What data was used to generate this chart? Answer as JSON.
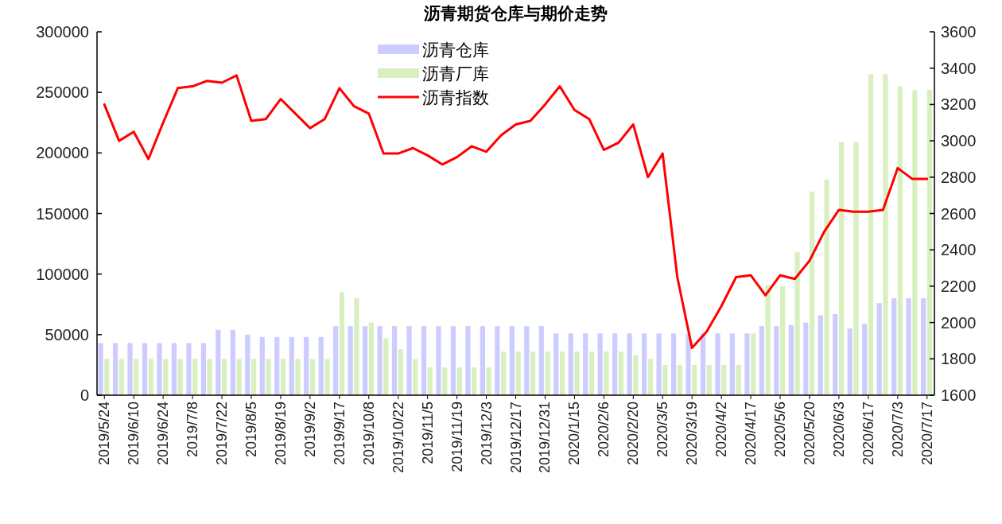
{
  "chart_data": {
    "type": "bar",
    "title": "沥青期货仓库与期价走势",
    "categories": [
      "2019/5/24",
      null,
      "2019/6/10",
      null,
      "2019/6/24",
      null,
      "2019/7/8",
      null,
      "2019/7/22",
      null,
      "2019/8/5",
      null,
      "2019/8/19",
      null,
      "2019/9/2",
      null,
      "2019/9/17",
      null,
      "2019/10/8",
      null,
      "2019/10/22",
      null,
      "2019/11/5",
      null,
      "2019/11/19",
      null,
      "2019/12/3",
      null,
      "2019/12/17",
      null,
      "2019/12/31",
      null,
      "2020/1/15",
      null,
      "2020/2/6",
      null,
      "2020/2/20",
      null,
      "2020/3/5",
      null,
      "2020/3/19",
      null,
      "2020/4/2",
      null,
      "2020/4/17",
      null,
      "2020/5/6",
      null,
      "2020/5/20",
      null,
      "2020/6/3",
      null,
      "2020/6/17",
      null,
      "2020/7/3",
      null,
      "2020/7/17"
    ],
    "series": [
      {
        "name": "沥青仓库",
        "color": "#ccccff",
        "values": [
          43000,
          43000,
          43000,
          43000,
          43000,
          43000,
          43000,
          43000,
          54000,
          54000,
          50000,
          48000,
          48000,
          48000,
          48000,
          48000,
          57000,
          57000,
          57000,
          57000,
          57000,
          57000,
          57000,
          57000,
          57000,
          57000,
          57000,
          57000,
          57000,
          57000,
          57000,
          51000,
          51000,
          51000,
          51000,
          51000,
          51000,
          51000,
          51000,
          51000,
          51000,
          51000,
          51000,
          51000,
          51000,
          57000,
          57000,
          58000,
          60000,
          66000,
          67000,
          55000,
          59000,
          76000,
          80000,
          80000,
          80000
        ]
      },
      {
        "name": "沥青厂库",
        "color": "#d8f0c0",
        "values": [
          30000,
          30000,
          30000,
          30000,
          30000,
          30000,
          30000,
          30000,
          30000,
          30000,
          30000,
          30000,
          30000,
          30000,
          30000,
          30000,
          85000,
          80000,
          60000,
          47000,
          38000,
          30000,
          23000,
          23000,
          23000,
          23000,
          23000,
          36000,
          36000,
          36000,
          36000,
          36000,
          36000,
          36000,
          36000,
          36000,
          33000,
          30000,
          25000,
          25000,
          25000,
          25000,
          25000,
          25000,
          51000,
          91000,
          90000,
          118000,
          168000,
          178000,
          209000,
          209000,
          265000,
          265000,
          255000,
          252000,
          252000
        ]
      },
      {
        "name": "沥青指数",
        "type": "line",
        "axis": "y2",
        "color": "#ff0000",
        "values": [
          3200,
          3000,
          3050,
          2900,
          3100,
          3290,
          3300,
          3330,
          3320,
          3360,
          3110,
          3120,
          3230,
          3150,
          3070,
          3120,
          3290,
          3190,
          3150,
          2930,
          2930,
          2960,
          2920,
          2870,
          2910,
          2970,
          2940,
          3030,
          3090,
          3110,
          3200,
          3300,
          3170,
          3120,
          2950,
          2990,
          3090,
          2800,
          2930,
          2250,
          1860,
          1950,
          2090,
          2250,
          2260,
          2150,
          2260,
          2240,
          2340,
          2500,
          2620,
          2610,
          2610,
          2620,
          2850,
          2790,
          2790
        ]
      }
    ],
    "ylim": [
      0,
      300000
    ],
    "yticks": [
      0,
      50000,
      100000,
      150000,
      200000,
      250000,
      300000
    ],
    "y2lim": [
      1600,
      3600
    ],
    "y2ticks": [
      1600,
      1800,
      2000,
      2200,
      2400,
      2600,
      2800,
      3000,
      3200,
      3400,
      3600
    ],
    "legend": "top"
  }
}
